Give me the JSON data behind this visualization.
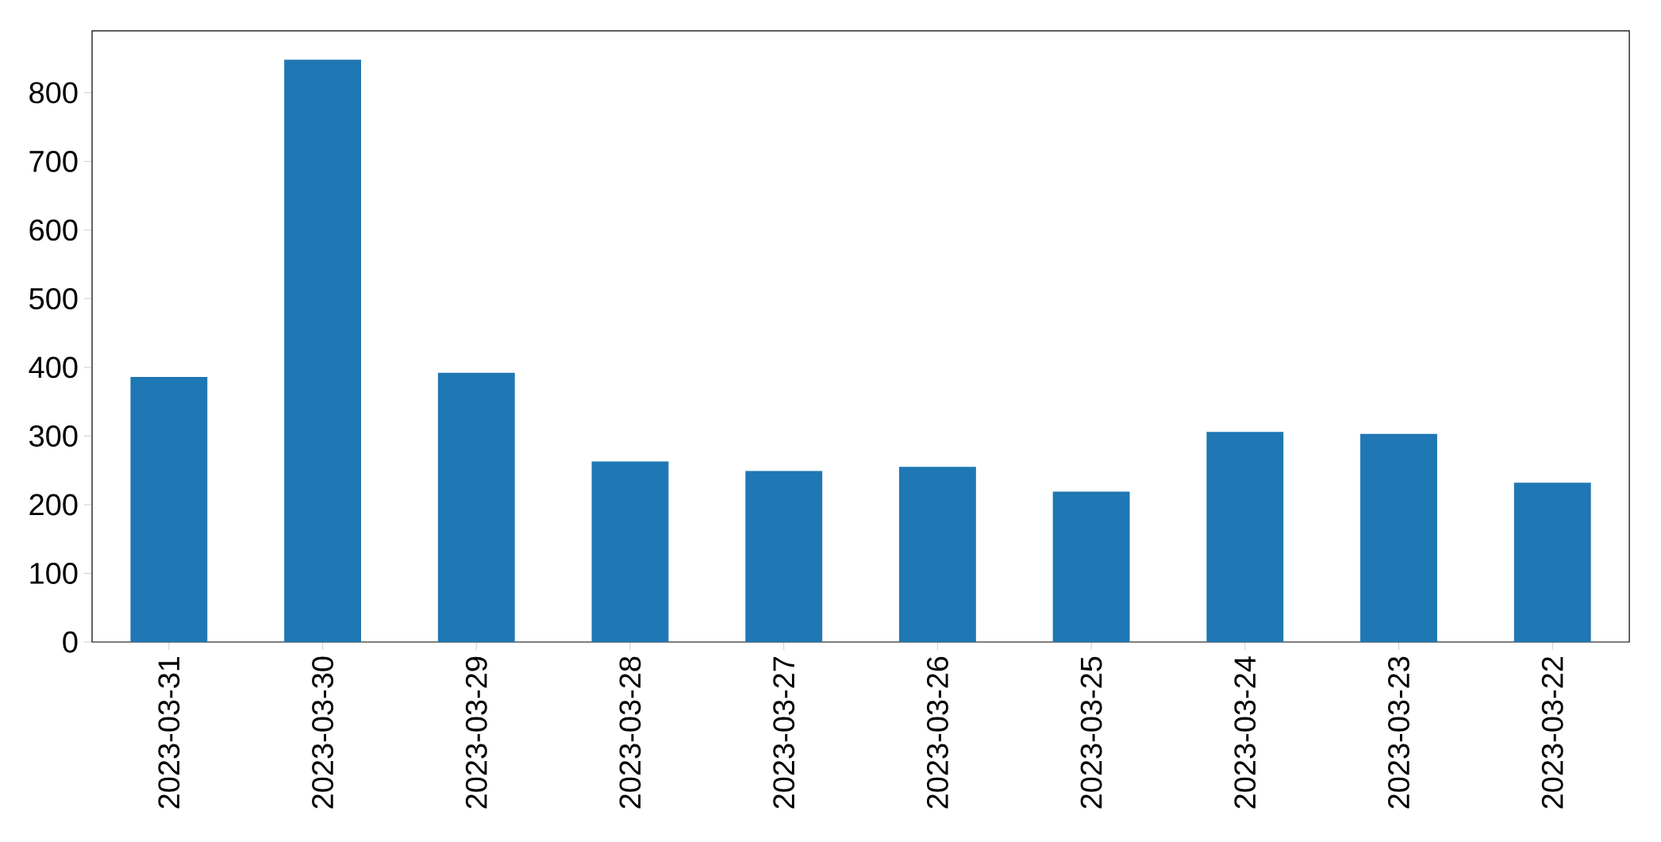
{
  "chart_data": {
    "type": "bar",
    "categories": [
      "2023-03-31",
      "2023-03-30",
      "2023-03-29",
      "2023-03-28",
      "2023-03-27",
      "2023-03-26",
      "2023-03-25",
      "2023-03-24",
      "2023-03-23",
      "2023-03-22"
    ],
    "values": [
      386,
      848,
      392,
      263,
      249,
      255,
      219,
      306,
      303,
      232
    ],
    "color": "#1f77b4",
    "ylim": [
      0,
      890
    ],
    "yticks": [
      0,
      100,
      200,
      300,
      400,
      500,
      600,
      700,
      800
    ],
    "grid": false
  }
}
